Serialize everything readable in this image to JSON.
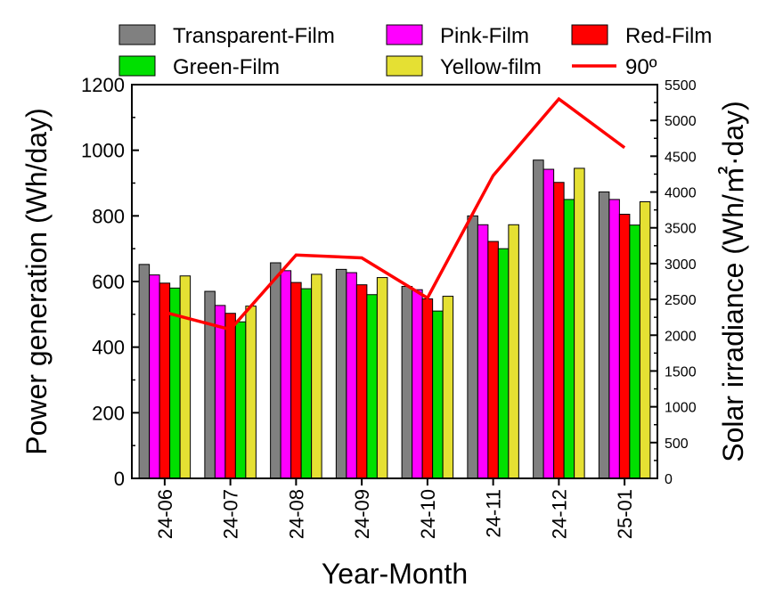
{
  "chart_data": {
    "type": "bar",
    "xlabel": "Year-Month",
    "ylabel": "Power generation (Wh/day)",
    "y2label": "Solar irradiance (Wh/㎡·day)",
    "ylim": [
      0,
      1200
    ],
    "y2lim": [
      0,
      5500
    ],
    "yticks": [
      "0",
      "200",
      "400",
      "600",
      "800",
      "1000",
      "1200"
    ],
    "y2ticks": [
      "0",
      "500",
      "1000",
      "1500",
      "2000",
      "2500",
      "3000",
      "3500",
      "4000",
      "4500",
      "5000",
      "5500"
    ],
    "categories": [
      "24-06",
      "24-07",
      "24-08",
      "24-09",
      "24-10",
      "24-11",
      "24-12",
      "25-01"
    ],
    "series": [
      {
        "name": "Transparent-Film",
        "color": "#808080",
        "values": [
          652,
          570,
          657,
          637,
          585,
          800,
          970,
          873
        ]
      },
      {
        "name": "Pink-Film",
        "color": "#ff00ff",
        "values": [
          620,
          527,
          633,
          627,
          575,
          773,
          942,
          850
        ]
      },
      {
        "name": "Red-Film",
        "color": "#ff0000",
        "values": [
          595,
          503,
          597,
          590,
          547,
          722,
          902,
          805
        ]
      },
      {
        "name": "Green-Film",
        "color": "#00e000",
        "values": [
          580,
          477,
          578,
          560,
          510,
          700,
          850,
          772
        ]
      },
      {
        "name": "Yellow-film",
        "color": "#e5e033",
        "values": [
          617,
          525,
          622,
          612,
          555,
          773,
          945,
          843
        ]
      }
    ],
    "line_series": {
      "name": "90º",
      "color": "#ff0000",
      "axis": "right",
      "values": [
        2320,
        2080,
        3120,
        3080,
        2520,
        4230,
        5300,
        4620
      ]
    },
    "legend": {
      "position": "top"
    }
  }
}
